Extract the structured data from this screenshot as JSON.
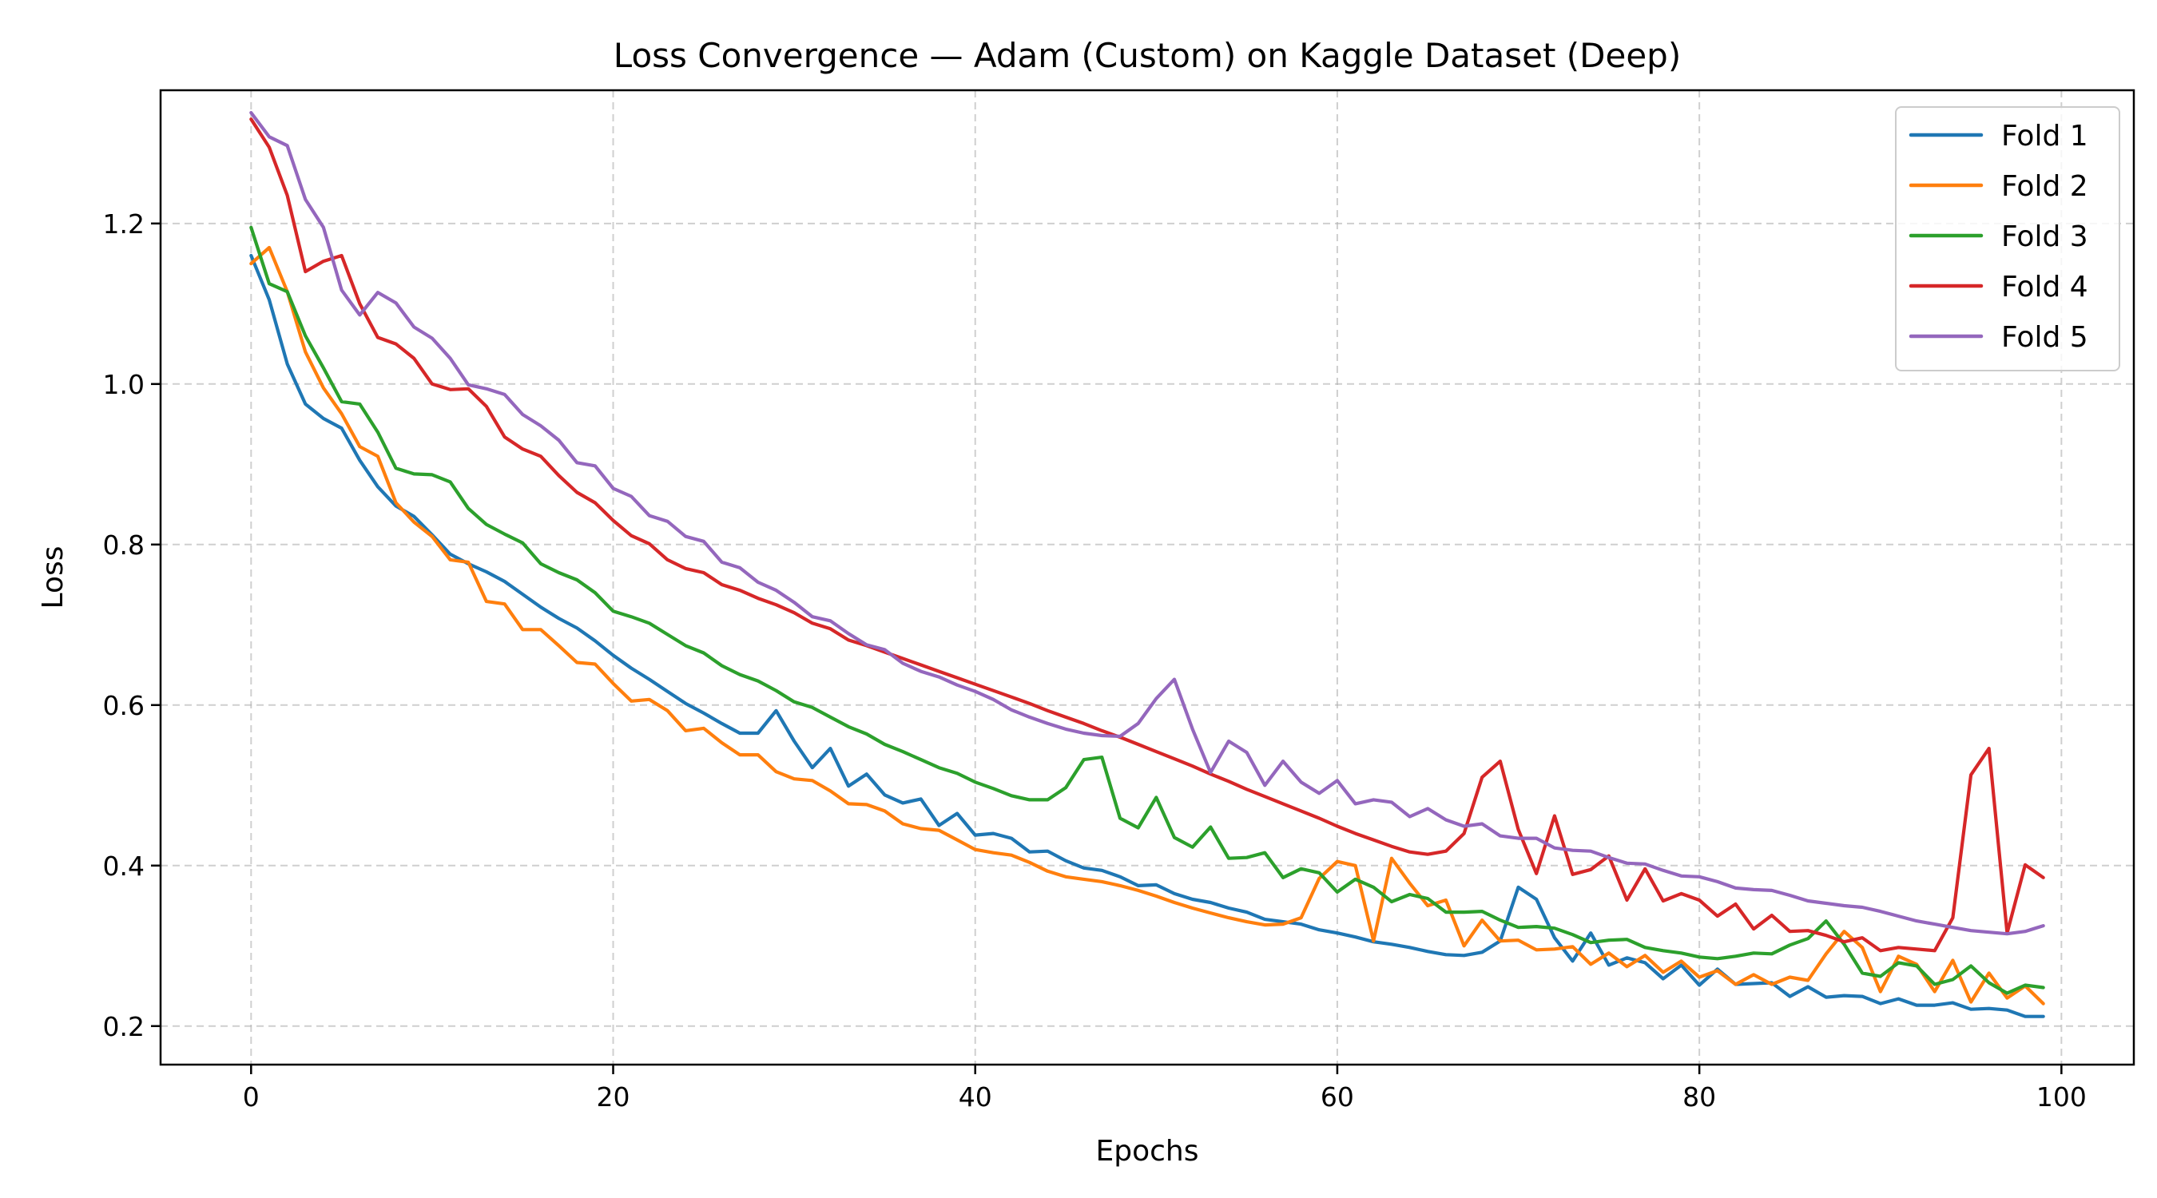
{
  "chart_data": {
    "type": "line",
    "title": "Loss Convergence — Adam (Custom) on Kaggle Dataset (Deep)",
    "xlabel": "Epochs",
    "ylabel": "Loss",
    "xlim": [
      -5,
      104
    ],
    "ylim": [
      0.152,
      1.366
    ],
    "xticks": [
      0,
      20,
      40,
      60,
      80,
      100
    ],
    "xtick_labels": [
      "0",
      "20",
      "40",
      "60",
      "80",
      "100"
    ],
    "yticks": [
      0.2,
      0.4,
      0.6,
      0.8,
      1.0,
      1.2
    ],
    "ytick_labels": [
      "0.2",
      "0.4",
      "0.6",
      "0.8",
      "1.0",
      "1.2"
    ],
    "grid": true,
    "legend_position": "top-right",
    "x_start": 0,
    "series": [
      {
        "name": "Fold 1",
        "color": "#1f77b4",
        "values": [
          1.16,
          1.105,
          1.025,
          0.975,
          0.957,
          0.945,
          0.905,
          0.872,
          0.848,
          0.835,
          0.812,
          0.788,
          0.776,
          0.766,
          0.754,
          0.738,
          0.722,
          0.708,
          0.696,
          0.68,
          0.662,
          0.646,
          0.632,
          0.617,
          0.602,
          0.59,
          0.577,
          0.565,
          0.565,
          0.593,
          0.555,
          0.522,
          0.546,
          0.499,
          0.514,
          0.488,
          0.478,
          0.483,
          0.45,
          0.465,
          0.438,
          0.44,
          0.434,
          0.417,
          0.418,
          0.406,
          0.397,
          0.394,
          0.386,
          0.375,
          0.376,
          0.365,
          0.358,
          0.354,
          0.347,
          0.342,
          0.333,
          0.33,
          0.327,
          0.32,
          0.316,
          0.311,
          0.305,
          0.302,
          0.298,
          0.293,
          0.289,
          0.288,
          0.292,
          0.306,
          0.373,
          0.358,
          0.31,
          0.281,
          0.316,
          0.276,
          0.285,
          0.279,
          0.259,
          0.276,
          0.251,
          0.271,
          0.252,
          0.253,
          0.254,
          0.237,
          0.249,
          0.236,
          0.238,
          0.237,
          0.228,
          0.234,
          0.226,
          0.226,
          0.229,
          0.221,
          0.222,
          0.22,
          0.212,
          0.212
        ]
      },
      {
        "name": "Fold 2",
        "color": "#ff7f0e",
        "values": [
          1.15,
          1.17,
          1.115,
          1.04,
          0.995,
          0.963,
          0.922,
          0.91,
          0.852,
          0.828,
          0.81,
          0.781,
          0.778,
          0.729,
          0.726,
          0.694,
          0.694,
          0.674,
          0.653,
          0.651,
          0.627,
          0.605,
          0.607,
          0.593,
          0.568,
          0.571,
          0.553,
          0.538,
          0.538,
          0.517,
          0.508,
          0.506,
          0.493,
          0.477,
          0.476,
          0.468,
          0.452,
          0.446,
          0.444,
          0.432,
          0.42,
          0.416,
          0.413,
          0.404,
          0.393,
          0.386,
          0.383,
          0.38,
          0.375,
          0.369,
          0.362,
          0.354,
          0.347,
          0.341,
          0.335,
          0.33,
          0.326,
          0.327,
          0.335,
          0.384,
          0.405,
          0.4,
          0.306,
          0.409,
          0.378,
          0.35,
          0.357,
          0.3,
          0.332,
          0.306,
          0.307,
          0.295,
          0.296,
          0.299,
          0.277,
          0.291,
          0.274,
          0.288,
          0.267,
          0.281,
          0.261,
          0.269,
          0.252,
          0.264,
          0.252,
          0.261,
          0.257,
          0.29,
          0.318,
          0.298,
          0.243,
          0.287,
          0.277,
          0.243,
          0.282,
          0.23,
          0.266,
          0.235,
          0.25,
          0.228
        ]
      },
      {
        "name": "Fold 3",
        "color": "#2ca02c",
        "values": [
          1.195,
          1.125,
          1.115,
          1.06,
          1.02,
          0.978,
          0.975,
          0.94,
          0.895,
          0.888,
          0.887,
          0.878,
          0.845,
          0.825,
          0.813,
          0.802,
          0.776,
          0.765,
          0.756,
          0.74,
          0.717,
          0.71,
          0.702,
          0.688,
          0.674,
          0.665,
          0.649,
          0.638,
          0.63,
          0.618,
          0.604,
          0.597,
          0.585,
          0.573,
          0.564,
          0.551,
          0.542,
          0.532,
          0.522,
          0.515,
          0.504,
          0.496,
          0.487,
          0.482,
          0.482,
          0.497,
          0.532,
          0.535,
          0.459,
          0.447,
          0.485,
          0.435,
          0.423,
          0.448,
          0.409,
          0.41,
          0.416,
          0.385,
          0.396,
          0.391,
          0.367,
          0.383,
          0.373,
          0.355,
          0.364,
          0.359,
          0.342,
          0.342,
          0.343,
          0.332,
          0.323,
          0.324,
          0.322,
          0.314,
          0.304,
          0.307,
          0.308,
          0.298,
          0.294,
          0.291,
          0.286,
          0.284,
          0.287,
          0.291,
          0.29,
          0.301,
          0.309,
          0.331,
          0.302,
          0.266,
          0.262,
          0.279,
          0.275,
          0.252,
          0.258,
          0.275,
          0.254,
          0.241,
          0.251,
          0.248
        ]
      },
      {
        "name": "Fold 4",
        "color": "#d62728",
        "values": [
          1.33,
          1.295,
          1.235,
          1.14,
          1.153,
          1.16,
          1.1,
          1.058,
          1.05,
          1.032,
          1.0,
          0.993,
          0.994,
          0.972,
          0.934,
          0.919,
          0.91,
          0.886,
          0.865,
          0.852,
          0.83,
          0.811,
          0.801,
          0.781,
          0.77,
          0.765,
          0.75,
          0.743,
          0.733,
          0.725,
          0.715,
          0.702,
          0.695,
          0.681,
          0.674,
          0.666,
          0.658,
          0.65,
          0.642,
          0.634,
          0.626,
          0.618,
          0.61,
          0.602,
          0.593,
          0.585,
          0.577,
          0.568,
          0.56,
          0.551,
          0.542,
          0.533,
          0.524,
          0.514,
          0.505,
          0.495,
          0.486,
          0.477,
          0.468,
          0.459,
          0.449,
          0.44,
          0.432,
          0.424,
          0.417,
          0.414,
          0.418,
          0.44,
          0.51,
          0.53,
          0.445,
          0.39,
          0.462,
          0.389,
          0.395,
          0.412,
          0.357,
          0.396,
          0.356,
          0.365,
          0.357,
          0.337,
          0.352,
          0.321,
          0.338,
          0.318,
          0.319,
          0.313,
          0.305,
          0.31,
          0.294,
          0.298,
          0.296,
          0.294,
          0.335,
          0.513,
          0.546,
          0.316,
          0.401,
          0.385
        ]
      },
      {
        "name": "Fold 5",
        "color": "#9467bd",
        "values": [
          1.338,
          1.308,
          1.297,
          1.23,
          1.195,
          1.117,
          1.086,
          1.114,
          1.101,
          1.071,
          1.057,
          1.032,
          0.999,
          0.994,
          0.987,
          0.962,
          0.948,
          0.93,
          0.902,
          0.898,
          0.87,
          0.86,
          0.836,
          0.829,
          0.81,
          0.804,
          0.778,
          0.771,
          0.753,
          0.743,
          0.728,
          0.71,
          0.705,
          0.689,
          0.675,
          0.669,
          0.652,
          0.642,
          0.635,
          0.625,
          0.617,
          0.607,
          0.594,
          0.585,
          0.577,
          0.57,
          0.565,
          0.562,
          0.561,
          0.577,
          0.608,
          0.632,
          0.57,
          0.516,
          0.555,
          0.541,
          0.5,
          0.53,
          0.504,
          0.49,
          0.506,
          0.477,
          0.482,
          0.479,
          0.461,
          0.471,
          0.457,
          0.449,
          0.452,
          0.437,
          0.434,
          0.434,
          0.422,
          0.419,
          0.418,
          0.41,
          0.403,
          0.402,
          0.394,
          0.387,
          0.386,
          0.38,
          0.372,
          0.37,
          0.369,
          0.363,
          0.356,
          0.353,
          0.35,
          0.348,
          0.343,
          0.337,
          0.331,
          0.327,
          0.323,
          0.319,
          0.317,
          0.315,
          0.318,
          0.325
        ]
      }
    ]
  }
}
